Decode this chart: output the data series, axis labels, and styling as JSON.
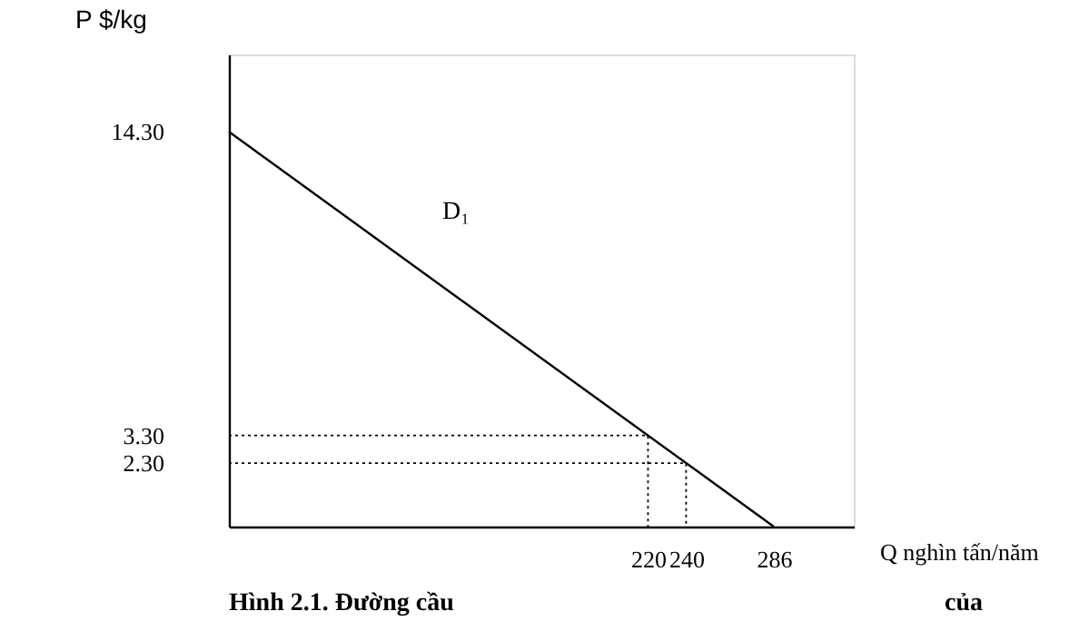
{
  "chart_data": {
    "type": "line",
    "xlabel": "Q nghìn tấn/năm",
    "ylabel": "P $/kg",
    "xlim": [
      0,
      328
    ],
    "ylim": [
      0,
      17.1
    ],
    "xticks": [
      220,
      240,
      286
    ],
    "yticks": [
      {
        "value": 14.3,
        "label": "14.30"
      },
      {
        "value": 3.3,
        "label": "3.30"
      },
      {
        "value": 2.3,
        "label": "2.30"
      }
    ],
    "grid": false,
    "series": [
      {
        "name": "D₁",
        "color": "#000000",
        "line_style": "solid",
        "x": [
          0,
          286
        ],
        "values": [
          14.3,
          0
        ]
      },
      {
        "color": "#000000",
        "line_style": "dotted",
        "x": [
          0,
          220,
          220
        ],
        "values": [
          3.3,
          3.3,
          0
        ]
      },
      {
        "color": "#000000",
        "line_style": "dotted",
        "x": [
          0,
          240,
          240
        ],
        "values": [
          2.3,
          2.3,
          0
        ]
      }
    ],
    "annotations": [
      "Hình 2.1. Đường cầu",
      "của"
    ]
  }
}
